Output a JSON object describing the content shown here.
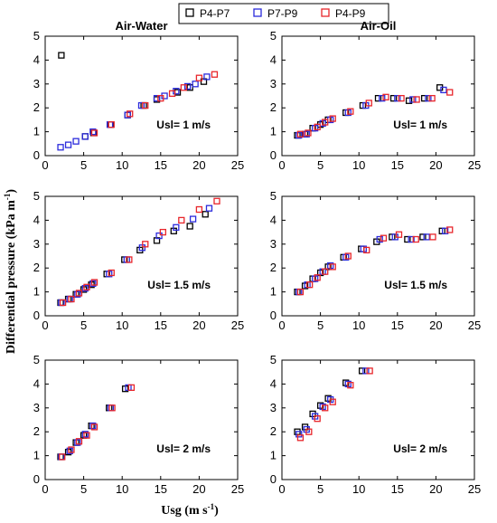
{
  "legend": [
    {
      "label": "P4-P7",
      "color": "#000000"
    },
    {
      "label": "P7-P9",
      "color": "#2b2bdc"
    },
    {
      "label": "P4-P9",
      "color": "#e8262b"
    }
  ],
  "axes": {
    "ylabel_main": "Differential pressure (kPa m",
    "ylabel_sup": "-1",
    "ylabel_end": ")",
    "xlabel_main": "Usg (m s",
    "xlabel_sup": "-1",
    "xlabel_end": ")"
  },
  "chart_data": [
    {
      "type": "scatter",
      "panel": "air-water-usl-1",
      "title": "Air-Water",
      "annotation": "Usl= 1 m/s",
      "xlim": [
        0,
        25
      ],
      "ylim": [
        0,
        5
      ],
      "xticks": [
        0,
        5,
        10,
        15,
        20,
        25
      ],
      "yticks": [
        0,
        1,
        2,
        3,
        4,
        5
      ],
      "series": [
        {
          "name": "P4-P7",
          "x": [
            2.1,
            5.2,
            6.3,
            8.5,
            10.7,
            12.8,
            14.5,
            17.2,
            18.8,
            20.6
          ],
          "y": [
            4.2,
            0.8,
            0.95,
            1.3,
            1.7,
            2.1,
            2.35,
            2.65,
            2.85,
            3.1
          ]
        },
        {
          "name": "P7-P9",
          "x": [
            2.0,
            3.0,
            4.0,
            5.2,
            6.2,
            8.4,
            10.7,
            12.5,
            14.5,
            15.5,
            17.0,
            18.5,
            19.5,
            21.0
          ],
          "y": [
            0.35,
            0.45,
            0.6,
            0.8,
            1.0,
            1.3,
            1.7,
            2.1,
            2.4,
            2.5,
            2.7,
            2.9,
            3.0,
            3.3
          ]
        },
        {
          "name": "P4-P9",
          "x": [
            6.4,
            8.6,
            11.0,
            13.0,
            15.0,
            16.5,
            18.0,
            20.0,
            22.0
          ],
          "y": [
            0.95,
            1.3,
            1.75,
            2.1,
            2.4,
            2.6,
            2.85,
            3.25,
            3.4
          ]
        }
      ]
    },
    {
      "type": "scatter",
      "panel": "air-oil-usl-1",
      "title": "Air-Oil",
      "annotation": "Usl= 1 m/s",
      "xlim": [
        0,
        25
      ],
      "ylim": [
        0,
        5
      ],
      "xticks": [
        0,
        5,
        10,
        15,
        20,
        25
      ],
      "yticks": [
        0,
        1,
        2,
        3,
        4,
        5
      ],
      "series": [
        {
          "name": "P4-P7",
          "x": [
            2.0,
            3.0,
            4.0,
            5.0,
            6.0,
            8.3,
            10.5,
            12.5,
            14.5,
            16.5,
            18.5,
            20.5
          ],
          "y": [
            0.85,
            0.9,
            1.15,
            1.3,
            1.5,
            1.8,
            2.1,
            2.4,
            2.4,
            2.3,
            2.4,
            2.85
          ]
        },
        {
          "name": "P7-P9",
          "x": [
            2.2,
            3.2,
            4.3,
            5.3,
            6.3,
            8.6,
            10.9,
            13.0,
            15.0,
            17.0,
            19.0,
            21.0
          ],
          "y": [
            0.85,
            0.9,
            1.15,
            1.35,
            1.5,
            1.8,
            2.1,
            2.4,
            2.4,
            2.35,
            2.4,
            2.75
          ]
        },
        {
          "name": "P4-P9",
          "x": [
            2.4,
            3.4,
            4.6,
            5.6,
            6.6,
            8.9,
            11.3,
            13.5,
            15.5,
            17.5,
            19.5,
            21.8
          ],
          "y": [
            0.9,
            0.95,
            1.2,
            1.4,
            1.55,
            1.85,
            2.2,
            2.45,
            2.4,
            2.35,
            2.4,
            2.65
          ]
        }
      ]
    },
    {
      "type": "scatter",
      "panel": "air-water-usl-1.5",
      "annotation": "Usl= 1.5 m/s",
      "xlim": [
        0,
        25
      ],
      "ylim": [
        0,
        5
      ],
      "xticks": [
        0,
        5,
        10,
        15,
        20,
        25
      ],
      "yticks": [
        0,
        1,
        2,
        3,
        4,
        5
      ],
      "series": [
        {
          "name": "P4-P7",
          "x": [
            2.0,
            3.0,
            4.0,
            5.0,
            6.0,
            8.0,
            10.3,
            12.3,
            14.5,
            16.7,
            18.8,
            20.8
          ],
          "y": [
            0.55,
            0.7,
            0.9,
            1.1,
            1.3,
            1.75,
            2.35,
            2.75,
            3.15,
            3.55,
            3.75,
            4.25
          ]
        },
        {
          "name": "P7-P9",
          "x": [
            2.1,
            3.2,
            4.2,
            5.2,
            6.2,
            8.3,
            10.6,
            12.6,
            14.8,
            17.0,
            19.2,
            21.3
          ],
          "y": [
            0.55,
            0.7,
            0.9,
            1.15,
            1.35,
            1.75,
            2.35,
            2.85,
            3.35,
            3.7,
            4.05,
            4.5
          ]
        },
        {
          "name": "P4-P9",
          "x": [
            2.3,
            3.4,
            4.4,
            5.4,
            6.4,
            8.6,
            10.9,
            13.0,
            15.3,
            17.7,
            20.0,
            22.3
          ],
          "y": [
            0.55,
            0.7,
            0.95,
            1.2,
            1.4,
            1.8,
            2.35,
            3.0,
            3.5,
            4.0,
            4.45,
            4.8
          ]
        }
      ]
    },
    {
      "type": "scatter",
      "panel": "air-oil-usl-1.5",
      "annotation": "Usl= 1.5 m/s",
      "xlim": [
        0,
        25
      ],
      "ylim": [
        0,
        5
      ],
      "xticks": [
        0,
        5,
        10,
        15,
        20,
        25
      ],
      "yticks": [
        0,
        1,
        2,
        3,
        4,
        5
      ],
      "series": [
        {
          "name": "P4-P7",
          "x": [
            2.0,
            3.0,
            4.0,
            5.0,
            6.0,
            8.0,
            10.3,
            12.3,
            14.3,
            16.3,
            18.3,
            20.8
          ],
          "y": [
            1.0,
            1.25,
            1.55,
            1.8,
            2.05,
            2.45,
            2.8,
            3.1,
            3.3,
            3.2,
            3.3,
            3.55
          ]
        },
        {
          "name": "P7-P9",
          "x": [
            2.2,
            3.3,
            4.3,
            5.3,
            6.3,
            8.3,
            10.6,
            12.7,
            14.7,
            16.8,
            18.8,
            21.2
          ],
          "y": [
            1.0,
            1.3,
            1.55,
            1.85,
            2.1,
            2.45,
            2.8,
            3.2,
            3.3,
            3.2,
            3.3,
            3.55
          ]
        },
        {
          "name": "P4-P9",
          "x": [
            2.4,
            3.6,
            4.6,
            5.6,
            6.6,
            8.6,
            11.0,
            13.2,
            15.2,
            17.4,
            19.6,
            21.8
          ],
          "y": [
            1.0,
            1.3,
            1.6,
            1.85,
            2.05,
            2.5,
            2.75,
            3.25,
            3.4,
            3.2,
            3.3,
            3.6
          ]
        }
      ]
    },
    {
      "type": "scatter",
      "panel": "air-water-usl-2",
      "annotation": "Usl= 2 m/s",
      "xlim": [
        0,
        25
      ],
      "ylim": [
        0,
        5
      ],
      "xticks": [
        0,
        5,
        10,
        15,
        20,
        25
      ],
      "yticks": [
        0,
        1,
        2,
        3,
        4,
        5
      ],
      "series": [
        {
          "name": "P4-P7",
          "x": [
            2.0,
            3.0,
            4.0,
            5.0,
            6.0,
            8.3,
            10.4
          ],
          "y": [
            0.95,
            1.15,
            1.55,
            1.85,
            2.25,
            3.0,
            3.8
          ]
        },
        {
          "name": "P7-P9",
          "x": [
            2.1,
            3.2,
            4.2,
            5.2,
            6.2,
            8.5,
            10.8
          ],
          "y": [
            0.95,
            1.2,
            1.55,
            1.9,
            2.25,
            3.0,
            3.85
          ]
        },
        {
          "name": "P4-P9",
          "x": [
            2.2,
            3.4,
            4.4,
            5.4,
            6.4,
            8.7,
            11.2
          ],
          "y": [
            0.95,
            1.25,
            1.6,
            1.85,
            2.2,
            3.0,
            3.85
          ]
        }
      ]
    },
    {
      "type": "scatter",
      "panel": "air-oil-usl-2",
      "annotation": "Usl= 2 m/s",
      "xlim": [
        0,
        25
      ],
      "ylim": [
        0,
        5
      ],
      "xticks": [
        0,
        5,
        10,
        15,
        20,
        25
      ],
      "yticks": [
        0,
        1,
        2,
        3,
        4,
        5
      ],
      "series": [
        {
          "name": "P4-P7",
          "x": [
            2.0,
            3.0,
            4.0,
            5.0,
            6.0,
            8.3,
            10.4
          ],
          "y": [
            2.0,
            2.2,
            2.75,
            3.1,
            3.4,
            4.05,
            4.55
          ]
        },
        {
          "name": "P7-P9",
          "x": [
            2.2,
            3.2,
            4.3,
            5.3,
            6.3,
            8.6,
            10.9
          ],
          "y": [
            1.9,
            2.1,
            2.65,
            3.05,
            3.35,
            4.0,
            4.55
          ]
        },
        {
          "name": "P4-P9",
          "x": [
            2.4,
            3.5,
            4.6,
            5.6,
            6.6,
            8.9,
            11.4
          ],
          "y": [
            1.75,
            2.0,
            2.55,
            3.0,
            3.25,
            3.95,
            4.55
          ]
        }
      ]
    }
  ]
}
